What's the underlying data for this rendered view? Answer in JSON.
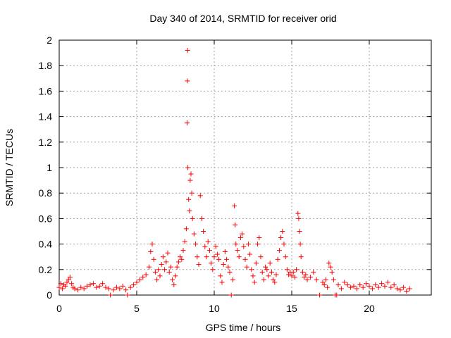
{
  "chart_data": {
    "type": "scatter",
    "title": "Day 340 of 2014, SRMTID for receiver orid",
    "xlabel": "GPS time / hours",
    "ylabel": "SRMTID / TECUs",
    "xlim": [
      0,
      24
    ],
    "ylim": [
      0,
      2
    ],
    "xticks": [
      0,
      5,
      10,
      15,
      20
    ],
    "xtick_labels": [
      "0",
      "5",
      "10",
      "15",
      "20"
    ],
    "yticks": [
      0,
      0.2,
      0.4,
      0.6,
      0.8,
      1,
      1.2,
      1.4,
      1.6,
      1.8,
      2
    ],
    "ytick_labels": [
      "0",
      "0.2",
      "0.4",
      "0.6",
      "0.8",
      "1",
      "1.2",
      "1.4",
      "1.6",
      "1.8",
      "2"
    ],
    "grid": true,
    "marker": "+",
    "marker_color": "#ff0000",
    "series": [
      {
        "name": "SRMTID",
        "points": [
          [
            0.0,
            0.06
          ],
          [
            0.1,
            0.09
          ],
          [
            0.2,
            0.05
          ],
          [
            0.3,
            0.08
          ],
          [
            0.4,
            0.07
          ],
          [
            0.5,
            0.1
          ],
          [
            0.6,
            0.12
          ],
          [
            0.7,
            0.14
          ],
          [
            0.8,
            0.09
          ],
          [
            0.9,
            0.06
          ],
          [
            1.0,
            0.05
          ],
          [
            1.2,
            0.04
          ],
          [
            1.4,
            0.06
          ],
          [
            1.6,
            0.05
          ],
          [
            1.8,
            0.07
          ],
          [
            2.0,
            0.08
          ],
          [
            2.2,
            0.09
          ],
          [
            2.4,
            0.06
          ],
          [
            2.6,
            0.07
          ],
          [
            2.8,
            0.09
          ],
          [
            3.0,
            0.06
          ],
          [
            3.2,
            0.05
          ],
          [
            3.3,
            0.0
          ],
          [
            3.5,
            0.04
          ],
          [
            3.7,
            0.06
          ],
          [
            3.9,
            0.05
          ],
          [
            4.1,
            0.07
          ],
          [
            4.3,
            0.04
          ],
          [
            4.4,
            0.0
          ],
          [
            4.6,
            0.06
          ],
          [
            4.8,
            0.08
          ],
          [
            5.0,
            0.1
          ],
          [
            5.2,
            0.12
          ],
          [
            5.4,
            0.14
          ],
          [
            5.6,
            0.16
          ],
          [
            5.8,
            0.22
          ],
          [
            5.9,
            0.34
          ],
          [
            6.0,
            0.4
          ],
          [
            6.1,
            0.28
          ],
          [
            6.2,
            0.18
          ],
          [
            6.3,
            0.12
          ],
          [
            6.4,
            0.2
          ],
          [
            6.5,
            0.15
          ],
          [
            6.6,
            0.24
          ],
          [
            6.7,
            0.3
          ],
          [
            6.8,
            0.2
          ],
          [
            6.9,
            0.26
          ],
          [
            7.0,
            0.33
          ],
          [
            7.1,
            0.18
          ],
          [
            7.2,
            0.22
          ],
          [
            7.3,
            0.12
          ],
          [
            7.4,
            0.08
          ],
          [
            7.5,
            0.15
          ],
          [
            7.6,
            0.22
          ],
          [
            7.7,
            0.26
          ],
          [
            7.8,
            0.3
          ],
          [
            7.9,
            0.28
          ],
          [
            8.0,
            0.35
          ],
          [
            8.1,
            0.42
          ],
          [
            8.2,
            0.52
          ],
          [
            8.25,
            1.35
          ],
          [
            8.27,
            1.68
          ],
          [
            8.28,
            1.92
          ],
          [
            8.3,
            1.0
          ],
          [
            8.35,
            0.75
          ],
          [
            8.4,
            0.66
          ],
          [
            8.45,
            0.9
          ],
          [
            8.5,
            0.95
          ],
          [
            8.55,
            0.8
          ],
          [
            8.6,
            0.6
          ],
          [
            8.7,
            0.48
          ],
          [
            8.8,
            0.4
          ],
          [
            8.9,
            0.3
          ],
          [
            9.0,
            0.24
          ],
          [
            9.1,
            0.78
          ],
          [
            9.2,
            0.6
          ],
          [
            9.3,
            0.5
          ],
          [
            9.4,
            0.38
          ],
          [
            9.5,
            0.3
          ],
          [
            9.6,
            0.42
          ],
          [
            9.7,
            0.35
          ],
          [
            9.8,
            0.25
          ],
          [
            9.9,
            0.2
          ],
          [
            10.0,
            0.3
          ],
          [
            10.1,
            0.38
          ],
          [
            10.2,
            0.32
          ],
          [
            10.3,
            0.28
          ],
          [
            10.4,
            0.15
          ],
          [
            10.5,
            0.1
          ],
          [
            10.6,
            0.24
          ],
          [
            10.7,
            0.34
          ],
          [
            10.8,
            0.28
          ],
          [
            10.9,
            0.22
          ],
          [
            11.0,
            0.18
          ],
          [
            11.1,
            0.0
          ],
          [
            11.2,
            0.12
          ],
          [
            11.3,
            0.7
          ],
          [
            11.35,
            0.55
          ],
          [
            11.4,
            0.4
          ],
          [
            11.5,
            0.35
          ],
          [
            11.6,
            0.3
          ],
          [
            11.7,
            0.45
          ],
          [
            11.8,
            0.48
          ],
          [
            11.9,
            0.38
          ],
          [
            12.0,
            0.28
          ],
          [
            12.1,
            0.22
          ],
          [
            12.2,
            0.4
          ],
          [
            12.3,
            0.32
          ],
          [
            12.4,
            0.2
          ],
          [
            12.5,
            0.15
          ],
          [
            12.6,
            0.1
          ],
          [
            12.7,
            0.25
          ],
          [
            12.8,
            0.4
          ],
          [
            12.9,
            0.45
          ],
          [
            13.0,
            0.3
          ],
          [
            13.1,
            0.18
          ],
          [
            13.2,
            0.12
          ],
          [
            13.3,
            0.22
          ],
          [
            13.4,
            0.2
          ],
          [
            13.5,
            0.15
          ],
          [
            13.6,
            0.25
          ],
          [
            13.7,
            0.18
          ],
          [
            13.8,
            0.12
          ],
          [
            13.9,
            0.1
          ],
          [
            14.0,
            0.16
          ],
          [
            14.1,
            0.28
          ],
          [
            14.2,
            0.35
          ],
          [
            14.3,
            0.45
          ],
          [
            14.4,
            0.5
          ],
          [
            14.5,
            0.4
          ],
          [
            14.6,
            0.3
          ],
          [
            14.7,
            0.2
          ],
          [
            14.8,
            0.16
          ],
          [
            14.9,
            0.18
          ],
          [
            15.0,
            0.15
          ],
          [
            15.1,
            0.18
          ],
          [
            15.2,
            0.14
          ],
          [
            15.3,
            0.2
          ],
          [
            15.4,
            0.64
          ],
          [
            15.45,
            0.6
          ],
          [
            15.5,
            0.5
          ],
          [
            15.55,
            0.4
          ],
          [
            15.6,
            0.3
          ],
          [
            15.7,
            0.18
          ],
          [
            15.8,
            0.14
          ],
          [
            15.9,
            0.16
          ],
          [
            16.0,
            0.12
          ],
          [
            16.2,
            0.14
          ],
          [
            16.4,
            0.18
          ],
          [
            16.6,
            0.12
          ],
          [
            16.8,
            0.0
          ],
          [
            17.0,
            0.1
          ],
          [
            17.1,
            0.08
          ],
          [
            17.2,
            0.12
          ],
          [
            17.3,
            0.06
          ],
          [
            17.4,
            0.25
          ],
          [
            17.5,
            0.22
          ],
          [
            17.6,
            0.18
          ],
          [
            17.7,
            0.12
          ],
          [
            17.8,
            0.0
          ],
          [
            17.9,
            0.0
          ],
          [
            18.0,
            0.08
          ],
          [
            18.2,
            0.05
          ],
          [
            18.4,
            0.1
          ],
          [
            18.6,
            0.08
          ],
          [
            18.8,
            0.06
          ],
          [
            19.0,
            0.07
          ],
          [
            19.2,
            0.05
          ],
          [
            19.4,
            0.08
          ],
          [
            19.6,
            0.06
          ],
          [
            19.8,
            0.09
          ],
          [
            20.0,
            0.07
          ],
          [
            20.2,
            0.05
          ],
          [
            20.4,
            0.08
          ],
          [
            20.6,
            0.06
          ],
          [
            20.8,
            0.09
          ],
          [
            21.0,
            0.07
          ],
          [
            21.2,
            0.1
          ],
          [
            21.4,
            0.06
          ],
          [
            21.6,
            0.08
          ],
          [
            21.8,
            0.05
          ],
          [
            22.0,
            0.04
          ],
          [
            22.2,
            0.06
          ],
          [
            22.4,
            0.03
          ],
          [
            22.6,
            0.05
          ]
        ]
      }
    ]
  }
}
